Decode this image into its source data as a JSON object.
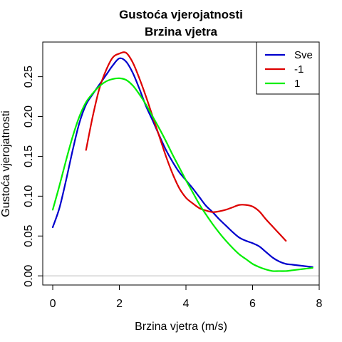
{
  "chart_data": {
    "type": "line",
    "title": "Gustoća vjerojatnosti",
    "subtitle": "Brzina vjetra",
    "xlabel": "Brzina vjetra (m/s)",
    "ylabel": "Gustoća vjerojatnosti",
    "xlim": [
      -0.3,
      8.0
    ],
    "ylim": [
      -0.0115,
      0.2935
    ],
    "xticks": [
      0,
      2,
      4,
      6,
      8
    ],
    "xtick_labels": [
      "0",
      "2",
      "4",
      "6",
      "8"
    ],
    "yticks": [
      0.0,
      0.05,
      0.1,
      0.15,
      0.2,
      0.25
    ],
    "ytick_labels": [
      "0.00",
      "0.05",
      "0.10",
      "0.15",
      "0.20",
      "0.25"
    ],
    "grid": false,
    "baseline": 0,
    "legend_position": "top-right",
    "series": [
      {
        "name": "Sve",
        "color": "#0000CD",
        "x": [
          0.0,
          0.2,
          0.4,
          0.6,
          0.8,
          1.0,
          1.2,
          1.4,
          1.6,
          1.8,
          2.0,
          2.2,
          2.4,
          2.6,
          2.8,
          3.0,
          3.2,
          3.4,
          3.6,
          3.8,
          4.0,
          4.2,
          4.4,
          4.6,
          4.8,
          5.0,
          5.2,
          5.4,
          5.6,
          5.8,
          6.0,
          6.2,
          6.4,
          6.6,
          6.8,
          7.0,
          7.2,
          7.4,
          7.6,
          7.8
        ],
        "y": [
          0.061,
          0.085,
          0.12,
          0.158,
          0.192,
          0.215,
          0.228,
          0.24,
          0.252,
          0.264,
          0.273,
          0.269,
          0.255,
          0.235,
          0.213,
          0.195,
          0.176,
          0.158,
          0.143,
          0.13,
          0.12,
          0.11,
          0.099,
          0.088,
          0.08,
          0.071,
          0.063,
          0.055,
          0.048,
          0.044,
          0.041,
          0.037,
          0.03,
          0.023,
          0.018,
          0.015,
          0.014,
          0.013,
          0.012,
          0.011
        ]
      },
      {
        "name": "-1",
        "color": "#DD0000",
        "x": [
          1.0,
          1.2,
          1.4,
          1.6,
          1.8,
          2.0,
          2.2,
          2.4,
          2.6,
          2.8,
          3.0,
          3.2,
          3.4,
          3.6,
          3.8,
          4.0,
          4.2,
          4.4,
          4.6,
          4.8,
          5.0,
          5.2,
          5.4,
          5.6,
          5.8,
          6.0,
          6.2,
          6.4,
          6.6,
          6.8,
          7.0
        ],
        "y": [
          0.158,
          0.2,
          0.235,
          0.258,
          0.274,
          0.279,
          0.28,
          0.268,
          0.248,
          0.225,
          0.2,
          0.175,
          0.15,
          0.128,
          0.11,
          0.098,
          0.091,
          0.085,
          0.082,
          0.08,
          0.081,
          0.083,
          0.086,
          0.089,
          0.089,
          0.087,
          0.081,
          0.071,
          0.062,
          0.053,
          0.044
        ]
      },
      {
        "name": "1",
        "color": "#00EE00",
        "x": [
          0.0,
          0.2,
          0.4,
          0.6,
          0.8,
          1.0,
          1.2,
          1.4,
          1.6,
          1.8,
          2.0,
          2.2,
          2.4,
          2.6,
          2.8,
          3.0,
          3.2,
          3.4,
          3.6,
          3.8,
          4.0,
          4.2,
          4.4,
          4.6,
          4.8,
          5.0,
          5.2,
          5.4,
          5.6,
          5.8,
          6.0,
          6.2,
          6.4,
          6.6,
          6.8,
          7.0,
          7.2,
          7.4,
          7.6,
          7.8
        ],
        "y": [
          0.083,
          0.113,
          0.145,
          0.175,
          0.2,
          0.218,
          0.229,
          0.238,
          0.244,
          0.247,
          0.248,
          0.246,
          0.239,
          0.228,
          0.215,
          0.2,
          0.185,
          0.169,
          0.152,
          0.136,
          0.12,
          0.105,
          0.09,
          0.077,
          0.065,
          0.054,
          0.044,
          0.035,
          0.027,
          0.021,
          0.015,
          0.011,
          0.008,
          0.006,
          0.006,
          0.006,
          0.007,
          0.008,
          0.009,
          0.01
        ]
      }
    ]
  }
}
